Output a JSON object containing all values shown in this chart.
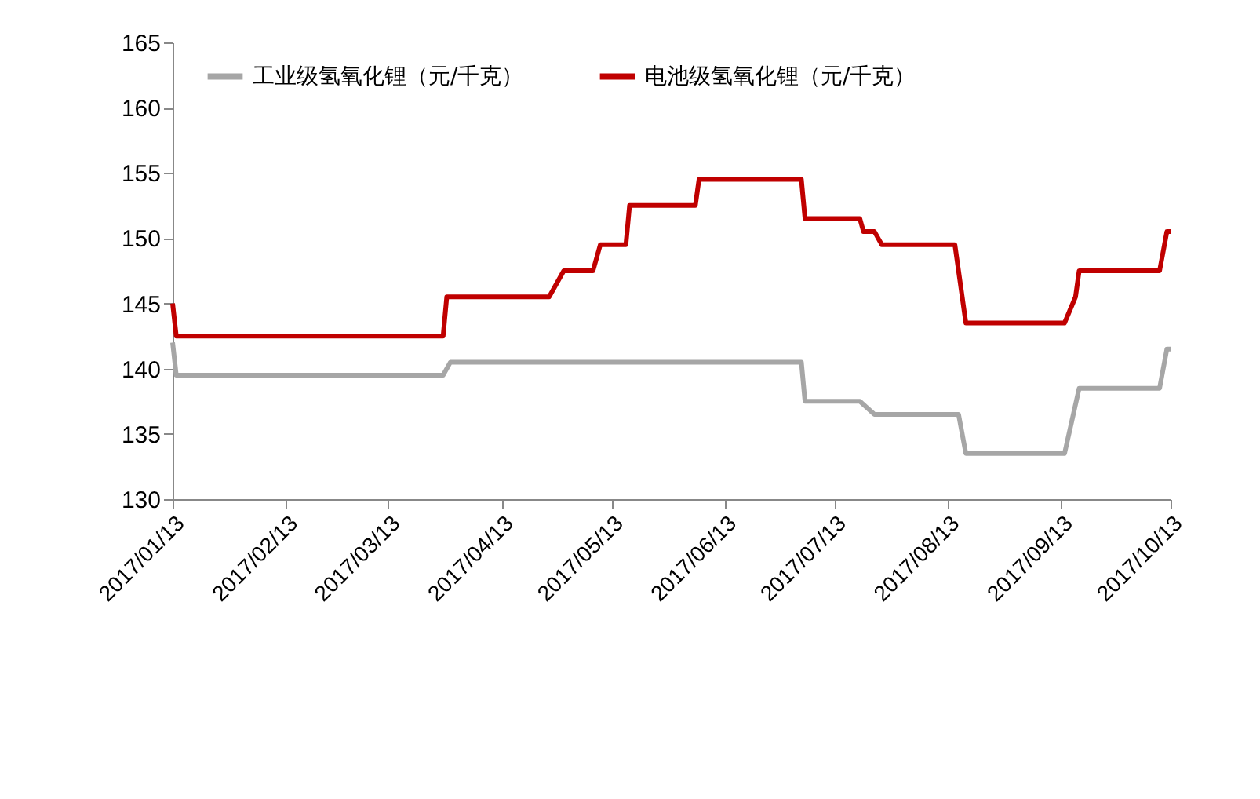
{
  "chart_data": {
    "type": "line",
    "legend": "top",
    "grid": false,
    "marker": "none",
    "line_style": "solid",
    "ylim": [
      130,
      165
    ],
    "yticks": [
      130,
      135,
      140,
      145,
      150,
      155,
      160,
      165
    ],
    "xlim": [
      "2017-01-13",
      "2017-10-13"
    ],
    "xticks": [
      {
        "value": "2017-01-13",
        "label": "2017/01/13"
      },
      {
        "value": "2017-02-13",
        "label": "2017/02/13"
      },
      {
        "value": "2017-03-13",
        "label": "2017/03/13"
      },
      {
        "value": "2017-04-13",
        "label": "2017/04/13"
      },
      {
        "value": "2017-05-13",
        "label": "2017/05/13"
      },
      {
        "value": "2017-06-13",
        "label": "2017/06/13"
      },
      {
        "value": "2017-07-13",
        "label": "2017/07/13"
      },
      {
        "value": "2017-08-13",
        "label": "2017/08/13"
      },
      {
        "value": "2017-09-13",
        "label": "2017/09/13"
      },
      {
        "value": "2017-10-13",
        "label": "2017/10/13"
      }
    ],
    "series": [
      {
        "name": "工业级氢氧化锂（元/千克）",
        "color": "#a6a6a6",
        "x": [
          "2017-01-13",
          "2017-01-14",
          "2017-03-28",
          "2017-03-30",
          "2017-07-04",
          "2017-07-05",
          "2017-07-20",
          "2017-07-24",
          "2017-08-16",
          "2017-08-18",
          "2017-09-14",
          "2017-09-16",
          "2017-09-18",
          "2017-10-10",
          "2017-10-12",
          "2017-10-13"
        ],
        "values": [
          142,
          139.5,
          139.5,
          140.5,
          140.5,
          137.5,
          137.5,
          136.5,
          136.5,
          133.5,
          133.5,
          136,
          138.5,
          138.5,
          141.5,
          141.5
        ]
      },
      {
        "name": "电池级氢氧化锂（元/千克）",
        "color": "#c00000",
        "x": [
          "2017-01-13",
          "2017-01-14",
          "2017-03-28",
          "2017-03-29",
          "2017-04-26",
          "2017-04-30",
          "2017-05-08",
          "2017-05-10",
          "2017-05-17",
          "2017-05-18",
          "2017-06-05",
          "2017-06-06",
          "2017-07-04",
          "2017-07-05",
          "2017-07-20",
          "2017-07-21",
          "2017-07-24",
          "2017-07-26",
          "2017-08-15",
          "2017-08-16",
          "2017-08-18",
          "2017-09-14",
          "2017-09-17",
          "2017-09-18",
          "2017-10-10",
          "2017-10-12",
          "2017-10-13"
        ],
        "values": [
          145,
          142.5,
          142.5,
          145.5,
          145.5,
          147.5,
          147.5,
          149.5,
          149.5,
          152.5,
          152.5,
          154.5,
          154.5,
          151.5,
          151.5,
          150.5,
          150.5,
          149.5,
          149.5,
          147.5,
          143.5,
          143.5,
          145.5,
          147.5,
          147.5,
          150.5,
          150.5
        ]
      }
    ]
  }
}
